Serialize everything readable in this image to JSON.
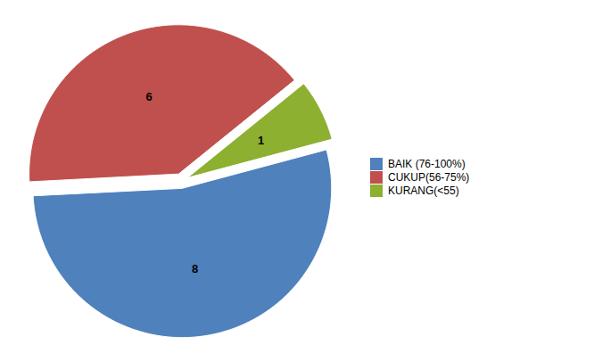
{
  "chart_data": {
    "type": "pie",
    "categories": [
      "BAIK (76-100%)",
      "CUKUP(56-75%)",
      "KURANG(<55)"
    ],
    "values": [
      8,
      6,
      1
    ],
    "colors": [
      "#4F81BD",
      "#C0504D",
      "#8DB030"
    ],
    "data_labels": true,
    "legend": "right"
  }
}
